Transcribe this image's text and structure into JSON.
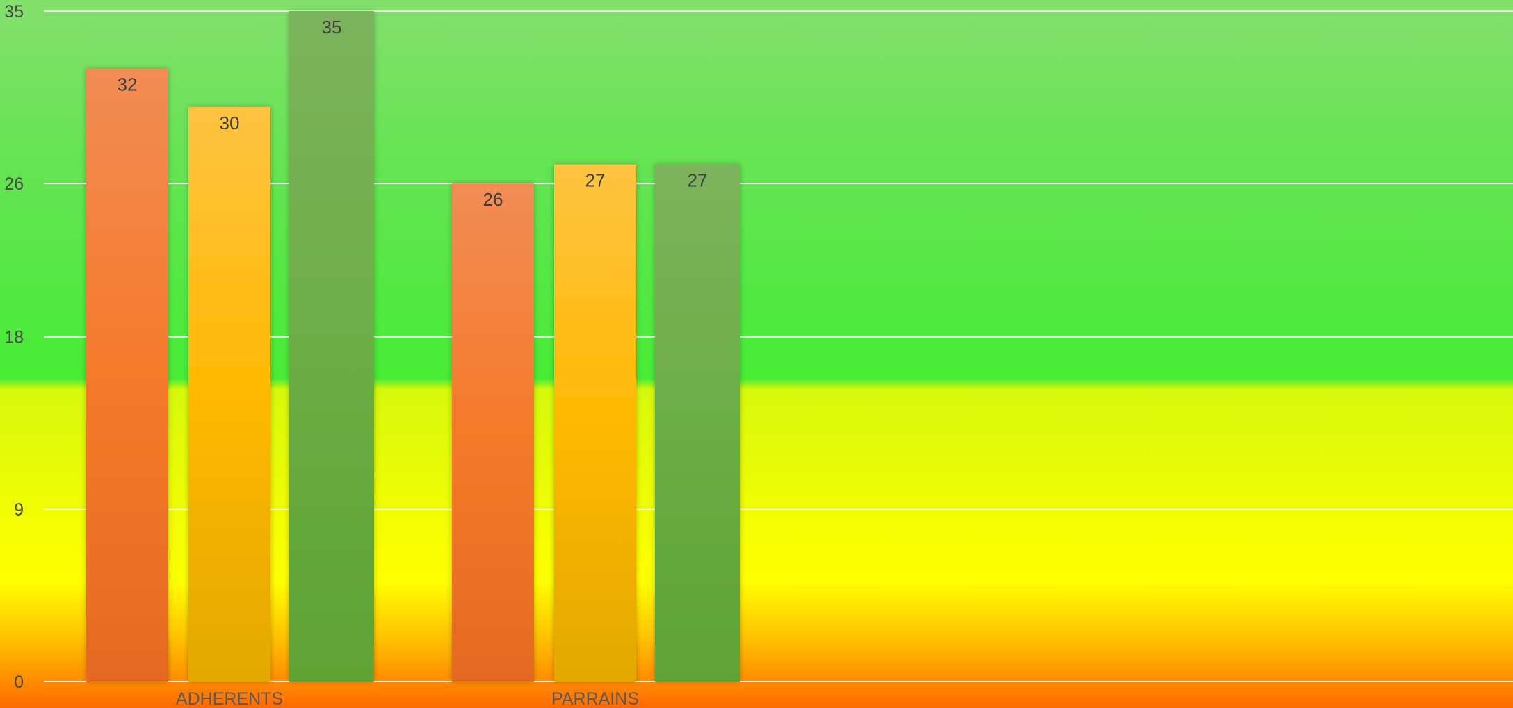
{
  "chart_data": {
    "type": "bar",
    "title": "",
    "xlabel": "",
    "ylabel": "",
    "categories": [
      "ADHERENTS",
      "PARRAINS"
    ],
    "series": [
      {
        "values": [
          32,
          26
        ],
        "color": "#F07B2E"
      },
      {
        "values": [
          30,
          27
        ],
        "color": "#FFB814"
      },
      {
        "values": [
          35,
          27
        ],
        "color": "#6AAE42"
      }
    ],
    "y_ticks": [
      0,
      9,
      18,
      26,
      35
    ],
    "ylim": [
      0,
      35
    ],
    "grid": true,
    "legend": "none",
    "data_labels": true,
    "background_gradient": [
      "#82E16B",
      "#4CEC3A",
      "#D9FA0A",
      "#FFFF00",
      "#FF6A00"
    ]
  }
}
